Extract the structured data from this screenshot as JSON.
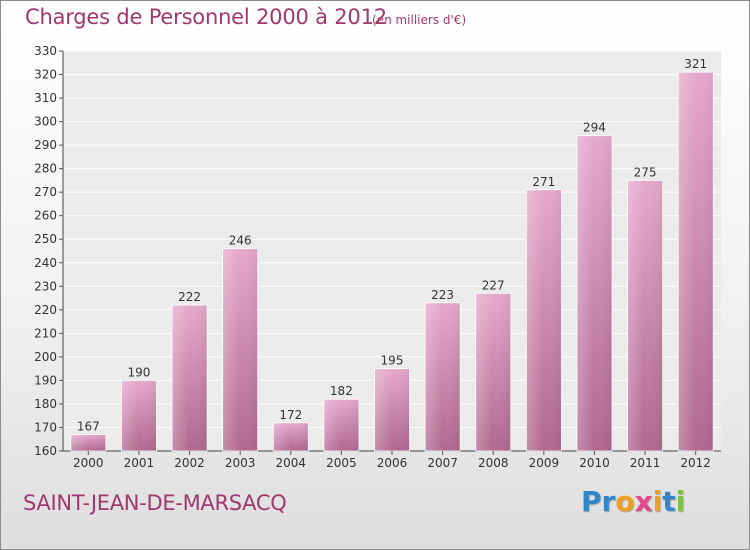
{
  "header": {
    "title": "Charges de Personnel 2000 à 2012",
    "unit": "(en milliers d'€)"
  },
  "footer": {
    "commune": "SAINT-JEAN-DE-MARSACQ",
    "logo_parts": [
      "Pr",
      "o",
      "x",
      "i",
      "t",
      "i"
    ]
  },
  "colors": {
    "bar_light": "#e6a8cc",
    "bar_dark": "#b06890",
    "title": "#a0386e"
  },
  "chart_data": {
    "type": "bar",
    "title": "Charges de Personnel 2000 à 2012",
    "categories": [
      "2000",
      "2001",
      "2002",
      "2003",
      "2004",
      "2005",
      "2006",
      "2007",
      "2008",
      "2009",
      "2010",
      "2011",
      "2012"
    ],
    "values": [
      167,
      190,
      222,
      246,
      172,
      182,
      195,
      223,
      227,
      271,
      294,
      275,
      321
    ],
    "value_labels": [
      "167",
      "190",
      "222",
      "246",
      "172",
      "182",
      "195",
      "223",
      "227",
      "271",
      "294",
      "275",
      "321"
    ],
    "ylim": [
      160,
      330
    ],
    "yticks": [
      160,
      170,
      180,
      190,
      200,
      210,
      220,
      230,
      240,
      250,
      260,
      270,
      280,
      290,
      300,
      310,
      320,
      330
    ],
    "grid": true,
    "xlabel": "",
    "ylabel": ""
  }
}
